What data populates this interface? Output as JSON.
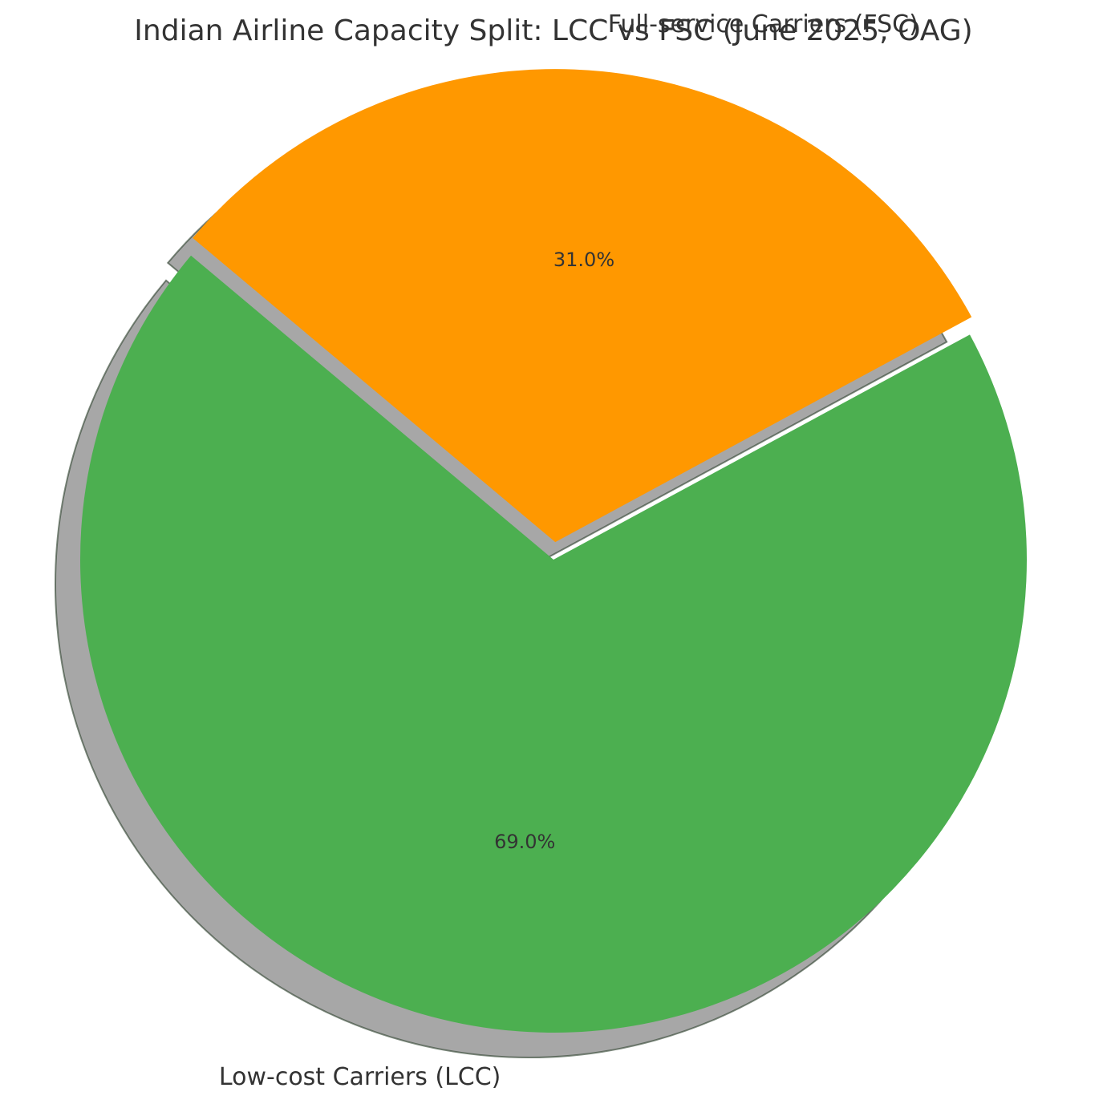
{
  "chart_data": {
    "type": "pie",
    "title": "Indian Airline Capacity Split: LCC vs FSC (June 2025, OAG)",
    "slices": [
      {
        "label": "Low-cost Carriers (LCC)",
        "value": 69.0,
        "pct_label": "69.0%",
        "color": "#4caf50",
        "exploded": false
      },
      {
        "label": "Full-service Carriers (FSC)",
        "value": 31.0,
        "pct_label": "31.0%",
        "color": "#ff9800",
        "exploded": true
      }
    ],
    "shadow": true,
    "start_angle_deg": 140,
    "direction": "counterclockwise"
  }
}
